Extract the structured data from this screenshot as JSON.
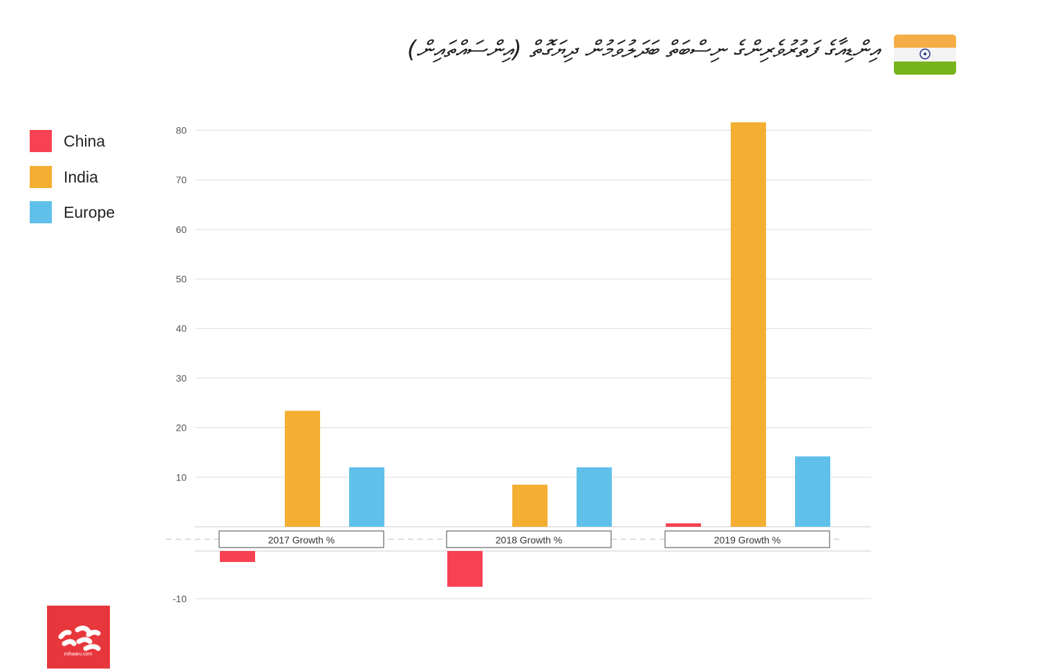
{
  "title": "އިންޑިއާގެ ފަތުރުވެރިންގެ ނިސްބަތް ބަދަލުވަމުން ދިޔަގޮތް (އިންސައްތައިން)",
  "flag_colors": [
    "#f6ad45",
    "#f3f3f3",
    "#77b31b"
  ],
  "logo_text": "mihaaru.com",
  "chart_data": {
    "type": "bar",
    "categories": [
      "2017 Growth %",
      "2018 Growth %",
      "2019 Growth %"
    ],
    "series": [
      {
        "name": "China",
        "color": "#f84152",
        "values": [
          -2.3,
          -7.5,
          0.7
        ]
      },
      {
        "name": "India",
        "color": "#f4ae32",
        "values": [
          23.4,
          8.5,
          81.6
        ]
      },
      {
        "name": "Europe",
        "color": "#5fc1e9",
        "values": [
          12.0,
          12.0,
          14.2
        ]
      }
    ],
    "yticks": [
      "80",
      "70",
      "60",
      "50",
      "40",
      "30",
      "20",
      "10",
      "-10"
    ],
    "ylim": [
      -10,
      82
    ],
    "grid": true,
    "legend": "left"
  }
}
